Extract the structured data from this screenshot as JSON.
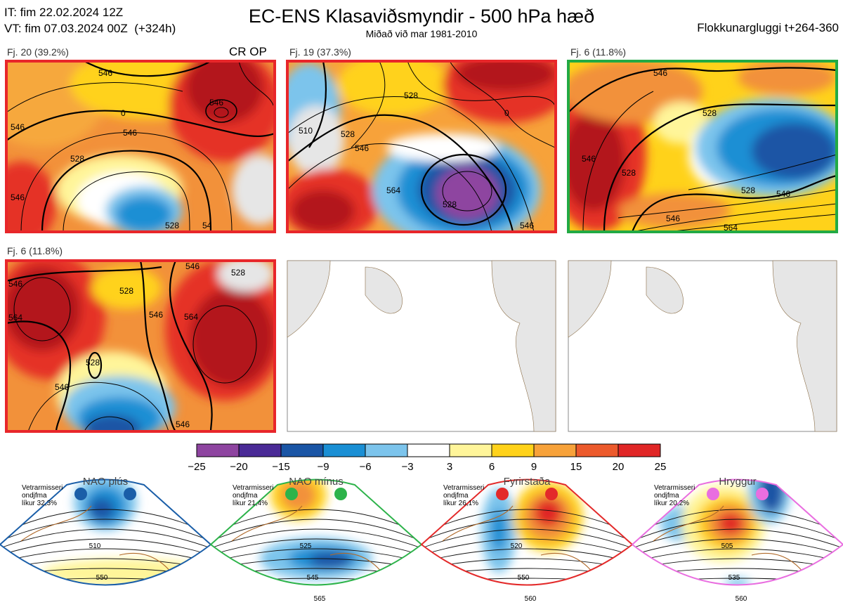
{
  "header": {
    "it": "IT: fim 22.02.2024 12Z",
    "vt": "VT: fim 07.03.2024 00Z  (+324h)",
    "title": "EC-ENS Klasaviðsmyndir - 500 hPa hæð",
    "subtitle": "Miðað við mar 1981-2010",
    "window": "Flokkunargluggi t+264-360"
  },
  "panels": [
    {
      "label": "Fj. 20 (39.2%)",
      "op": "CR OP",
      "border": "#e8262a",
      "contours": [
        "546",
        "546",
        "528",
        "546",
        "546",
        "546",
        "528",
        "0",
        "54"
      ]
    },
    {
      "label": "Fj. 19 (37.3%)",
      "op": "",
      "border": "#e8262a",
      "contours": [
        "510",
        "528",
        "528",
        "546",
        "564",
        "528",
        "546",
        "0"
      ]
    },
    {
      "label": "Fj. 6 (11.8%)",
      "op": "",
      "border": "#22aa44",
      "contours": [
        "546",
        "528",
        "528",
        "546",
        "528",
        "546",
        "546",
        "564"
      ]
    },
    {
      "label": "Fj. 6 (11.8%)",
      "op": "",
      "border": "#e8262a",
      "contours": [
        "546",
        "564",
        "528",
        "546",
        "546",
        "564",
        "528",
        "528",
        "546",
        "546"
      ]
    }
  ],
  "colorbar": {
    "ticks": [
      "−25",
      "−20",
      "−15",
      "−9",
      "−6",
      "−3",
      "3",
      "6",
      "9",
      "15",
      "20",
      "25"
    ],
    "colors": [
      "#8e44a0",
      "#4a2a96",
      "#1a55a5",
      "#1a8fd4",
      "#7cc4ec",
      "#ffffff",
      "#fff59a",
      "#ffd21a",
      "#f7a23a",
      "#ec5a2c",
      "#e02626",
      "#b3161b"
    ]
  },
  "regimes": [
    {
      "name": "NAO plús",
      "color": "#1a5ea8",
      "note": [
        "Vetrarmisseri",
        "ondjfma",
        "líkur 32,3%"
      ],
      "labels": [
        "510",
        "550"
      ]
    },
    {
      "name": "NAO mínus",
      "color": "#2db34a",
      "note": [
        "Vetrarmisseri",
        "ondjfma",
        "líkur 21,4%"
      ],
      "labels": [
        "525",
        "545",
        "565"
      ]
    },
    {
      "name": "Fyrirstaða",
      "color": "#e32a2a",
      "note": [
        "Vetrarmisseri",
        "ondjfma",
        "líkur 26,1%"
      ],
      "labels": [
        "520",
        "550",
        "560"
      ]
    },
    {
      "name": "Hryggur",
      "color": "#e96ee0",
      "note": [
        "Vetrarmisseri",
        "ondjfma",
        "líkur 20,2%"
      ],
      "labels": [
        "505",
        "535",
        "560"
      ]
    }
  ],
  "chart_data": {
    "type": "heatmap",
    "title": "EC-ENS Klasaviðsmyndir - 500 hPa hæð",
    "colorbar_levels": [
      -25,
      -20,
      -15,
      -9,
      -6,
      -3,
      3,
      6,
      9,
      15,
      20,
      25
    ],
    "clusters": [
      {
        "name": "Fj. 20",
        "probability_pct": 39.2
      },
      {
        "name": "Fj. 19",
        "probability_pct": 37.3
      },
      {
        "name": "Fj. 6",
        "probability_pct": 11.8
      },
      {
        "name": "Fj. 6",
        "probability_pct": 11.8
      }
    ],
    "regimes_probability_pct": [
      {
        "name": "NAO plús",
        "value": 32.3
      },
      {
        "name": "NAO mínus",
        "value": 21.4
      },
      {
        "name": "Fyrirstaða",
        "value": 26.1
      },
      {
        "name": "Hryggur",
        "value": 20.2
      }
    ]
  }
}
